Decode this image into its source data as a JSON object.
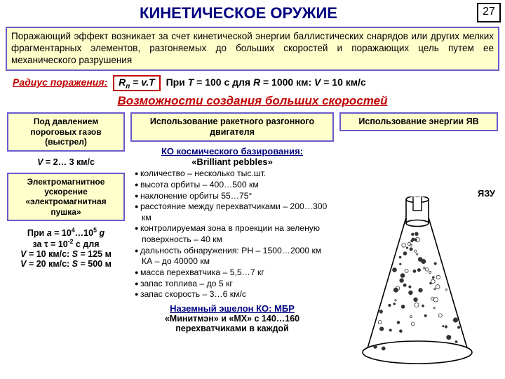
{
  "page_number": "27",
  "title": "КИНЕТИЧЕСКОЕ ОРУЖИЕ",
  "definition": "Поражающий эффект возникает за счет кинетической энергии баллистических снарядов или других мелких фрагментарных элементов, разгоняемых до больших скоростей и поражающих цель путем ее механического разрушения",
  "radius": {
    "label": "Радиус поражения:",
    "formula_html": "R<sub>п</sub> = v.T",
    "tail_html": "При <i>T</i> = 100 с  для  <i>R</i> = 1000 км: <i>V</i> = 10 км/с"
  },
  "section_title": "Возможности создания больших скоростей",
  "left": {
    "box1": "Под давлением пороговых газов (выстрел)",
    "v1_html": "<i>V</i> = 2… 3 км/с",
    "box2": "Электромагнитное ускорение «электромагнитная пушка»",
    "calc_html": "При <i>a</i> = 10<sup>4</sup>…10<sup>5</sup> <i>g</i><br>за τ = 10<sup>-2</sup> с  для<br><i>V</i> = 10 км/с: <i>S</i> = 125 м<br><i>V</i> = 20 км/с: <i>S</i> = 500 м"
  },
  "mid": {
    "box": "Использование ракетного разгонного двигателя",
    "ko_head": "КО космического базирования:",
    "ko_name": "«Brilliant pebbles»",
    "bullets": [
      "количество – несколько тыс.шт.",
      "высота орбиты – 400…500 км",
      "наклонение орбиты 55…75°",
      "расстояние между перехватчиками – 200…300 км",
      "контролируемая зона в проекции на зеленую поверхность – 40 км",
      "дальность обнаружения: РН – 1500…2000 км            КА – до 40000 км",
      "масса перехватчика – 5,5…7 кг",
      "запас топлива – до 5 кг",
      "запас скорость – 3…6 км/с"
    ],
    "ground_head": "Наземный эшелон КО: МБР",
    "ground_sub": "«Минитмэн» и «МХ» с 140…160 перехватчиками в каждой"
  },
  "right": {
    "box": "Использование энергии ЯВ",
    "yazu": "ЯЗУ"
  },
  "diagram": {
    "cylinder_stroke": "#000000",
    "cone_stroke": "#000000",
    "ground_stroke": "#000000",
    "debris_fill": "#444444"
  }
}
